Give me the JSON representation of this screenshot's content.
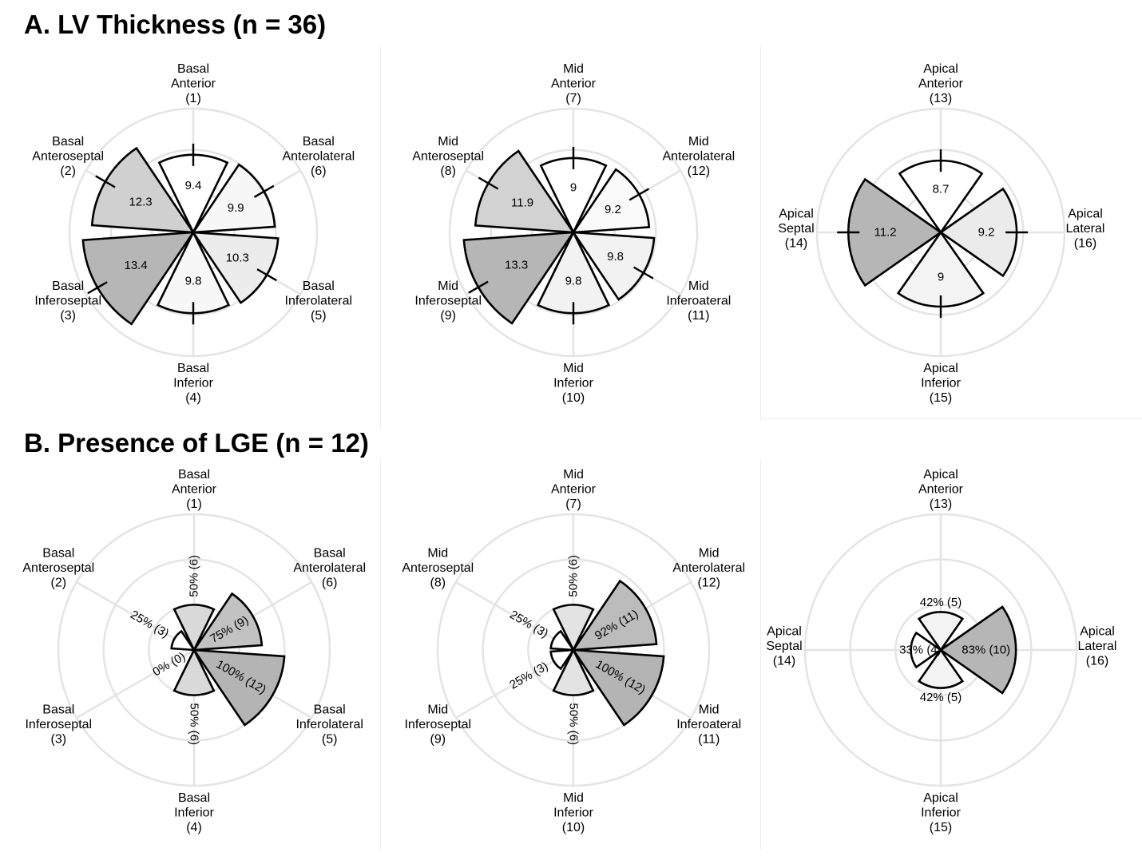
{
  "sections": [
    {
      "title": "A. LV Thickness (n = 36)"
    },
    {
      "title": "B. Presence of LGE (n = 12)"
    }
  ],
  "colors": {
    "grid": "#e4e4e4",
    "outline": "#000000",
    "text": "#000000"
  },
  "chart_data": [
    {
      "type": "polar-bar",
      "section": "A",
      "ring": "Basal",
      "grid_rings": [
        5,
        10,
        15
      ],
      "rmax": 15,
      "error_bars": true,
      "segments": [
        {
          "id": 1,
          "label": [
            "Basal",
            "Anterior",
            "(1)"
          ],
          "value": 9.4,
          "text": "9.4",
          "fill": "#ffffff"
        },
        {
          "id": 6,
          "label": [
            "Basal",
            "Anterolateral",
            "(6)"
          ],
          "value": 9.9,
          "text": "9.9",
          "fill": "#f7f7f7"
        },
        {
          "id": 5,
          "label": [
            "Basal",
            "Inferolateral",
            "(5)"
          ],
          "value": 10.3,
          "text": "10.3",
          "fill": "#ececec"
        },
        {
          "id": 4,
          "label": [
            "Basal",
            "Inferior",
            "(4)"
          ],
          "value": 9.8,
          "text": "9.8",
          "fill": "#f7f7f7"
        },
        {
          "id": 3,
          "label": [
            "Basal",
            "Inferoseptal",
            "(3)"
          ],
          "value": 13.4,
          "text": "13.4",
          "fill": "#b6b6b6"
        },
        {
          "id": 2,
          "label": [
            "Basal",
            "Anteroseptal",
            "(2)"
          ],
          "value": 12.3,
          "text": "12.3",
          "fill": "#d0d0d0"
        }
      ]
    },
    {
      "type": "polar-bar",
      "section": "A",
      "ring": "Mid",
      "grid_rings": [
        5,
        10,
        15
      ],
      "rmax": 15,
      "error_bars": true,
      "segments": [
        {
          "id": 7,
          "label": [
            "Mid",
            "Anterior",
            "(7)"
          ],
          "value": 9,
          "text": "9",
          "fill": "#ffffff"
        },
        {
          "id": 12,
          "label": [
            "Mid",
            "Anterolateral",
            "(12)"
          ],
          "value": 9.2,
          "text": "9.2",
          "fill": "#fafafa"
        },
        {
          "id": 11,
          "label": [
            "Mid",
            "Inferoateral",
            "(11)"
          ],
          "value": 9.8,
          "text": "9.8",
          "fill": "#f2f2f2"
        },
        {
          "id": 10,
          "label": [
            "Mid",
            "Inferior",
            "(10)"
          ],
          "value": 9.8,
          "text": "9.8",
          "fill": "#f2f2f2"
        },
        {
          "id": 9,
          "label": [
            "Mid",
            "Inferoseptal",
            "(9)"
          ],
          "value": 13.3,
          "text": "13.3",
          "fill": "#b6b6b6"
        },
        {
          "id": 8,
          "label": [
            "Mid",
            "Anteroseptal",
            "(8)"
          ],
          "value": 11.9,
          "text": "11.9",
          "fill": "#d2d2d2"
        }
      ]
    },
    {
      "type": "polar-bar",
      "section": "A",
      "ring": "Apical",
      "grid_rings": [
        5,
        10,
        15
      ],
      "rmax": 15,
      "error_bars": true,
      "segments": [
        {
          "id": 13,
          "label": [
            "Apical",
            "Anterior",
            "(13)"
          ],
          "value": 8.7,
          "text": "8.7",
          "fill": "#ffffff"
        },
        {
          "id": 16,
          "label": [
            "Apical",
            "Lateral",
            "(16)"
          ],
          "value": 9.2,
          "text": "9.2",
          "fill": "#ebebeb"
        },
        {
          "id": 15,
          "label": [
            "Apical",
            "Inferior",
            "(15)"
          ],
          "value": 9,
          "text": "9",
          "fill": "#f3f3f3"
        },
        {
          "id": 14,
          "label": [
            "Apical",
            "Septal",
            "(14)"
          ],
          "value": 11.2,
          "text": "11.2",
          "fill": "#b6b6b6"
        }
      ]
    },
    {
      "type": "polar-bar",
      "section": "B",
      "ring": "Basal",
      "grid_rings": [
        50,
        100,
        150
      ],
      "rmax": 150,
      "error_bars": false,
      "value_unit": "%",
      "segments": [
        {
          "id": 1,
          "label": [
            "Basal",
            "Anterior",
            "(1)"
          ],
          "value": 50,
          "text": "50% (6)",
          "fill": "#d9d9d9"
        },
        {
          "id": 6,
          "label": [
            "Basal",
            "Anterolateral",
            "(6)"
          ],
          "value": 75,
          "text": "75% (9)",
          "fill": "#c2c2c2"
        },
        {
          "id": 5,
          "label": [
            "Basal",
            "Inferolateral",
            "(5)"
          ],
          "value": 100,
          "text": "100% (12)",
          "fill": "#b4b4b4"
        },
        {
          "id": 4,
          "label": [
            "Basal",
            "Inferior",
            "(4)"
          ],
          "value": 50,
          "text": "50% (6)",
          "fill": "#d9d9d9"
        },
        {
          "id": 3,
          "label": [
            "Basal",
            "Inferoseptal",
            "(3)"
          ],
          "value": 0,
          "text": "0% (0)",
          "fill": "#ffffff"
        },
        {
          "id": 2,
          "label": [
            "Basal",
            "Anteroseptal",
            "(2)"
          ],
          "value": 25,
          "text": "25% (3)",
          "fill": "#ffffff"
        }
      ]
    },
    {
      "type": "polar-bar",
      "section": "B",
      "ring": "Mid",
      "grid_rings": [
        50,
        100,
        150
      ],
      "rmax": 150,
      "error_bars": false,
      "value_unit": "%",
      "segments": [
        {
          "id": 7,
          "label": [
            "Mid",
            "Anterior",
            "(7)"
          ],
          "value": 50,
          "text": "50% (6)",
          "fill": "#e3e3e3"
        },
        {
          "id": 12,
          "label": [
            "Mid",
            "Anterolateral",
            "(12)"
          ],
          "value": 92,
          "text": "92% (11)",
          "fill": "#bcbcbc"
        },
        {
          "id": 11,
          "label": [
            "Mid",
            "Inferoateral",
            "(11)"
          ],
          "value": 100,
          "text": "100% (12)",
          "fill": "#b4b4b4"
        },
        {
          "id": 10,
          "label": [
            "Mid",
            "Inferior",
            "(10)"
          ],
          "value": 50,
          "text": "50% (6)",
          "fill": "#e3e3e3"
        },
        {
          "id": 9,
          "label": [
            "Mid",
            "Inferoseptal",
            "(9)"
          ],
          "value": 25,
          "text": "25% (3)",
          "fill": "#ffffff"
        },
        {
          "id": 8,
          "label": [
            "Mid",
            "Anteroseptal",
            "(8)"
          ],
          "value": 25,
          "text": "25% (3)",
          "fill": "#ffffff"
        }
      ]
    },
    {
      "type": "polar-bar",
      "section": "B",
      "ring": "Apical",
      "grid_rings": [
        50,
        100,
        150
      ],
      "rmax": 150,
      "error_bars": false,
      "value_unit": "%",
      "segments": [
        {
          "id": 13,
          "label": [
            "Apical",
            "Anterior",
            "(13)"
          ],
          "value": 42,
          "text": "42% (5)",
          "fill": "#f3f3f3"
        },
        {
          "id": 16,
          "label": [
            "Apical",
            "Lateral",
            "(16)"
          ],
          "value": 83,
          "text": "83% (10)",
          "fill": "#b6b6b6"
        },
        {
          "id": 15,
          "label": [
            "Apical",
            "Inferior",
            "(15)"
          ],
          "value": 42,
          "text": "42% (5)",
          "fill": "#f3f3f3"
        },
        {
          "id": 14,
          "label": [
            "Apical",
            "Septal",
            "(14)"
          ],
          "value": 33,
          "text": "33% (4)",
          "fill": "#ffffff"
        }
      ]
    }
  ]
}
